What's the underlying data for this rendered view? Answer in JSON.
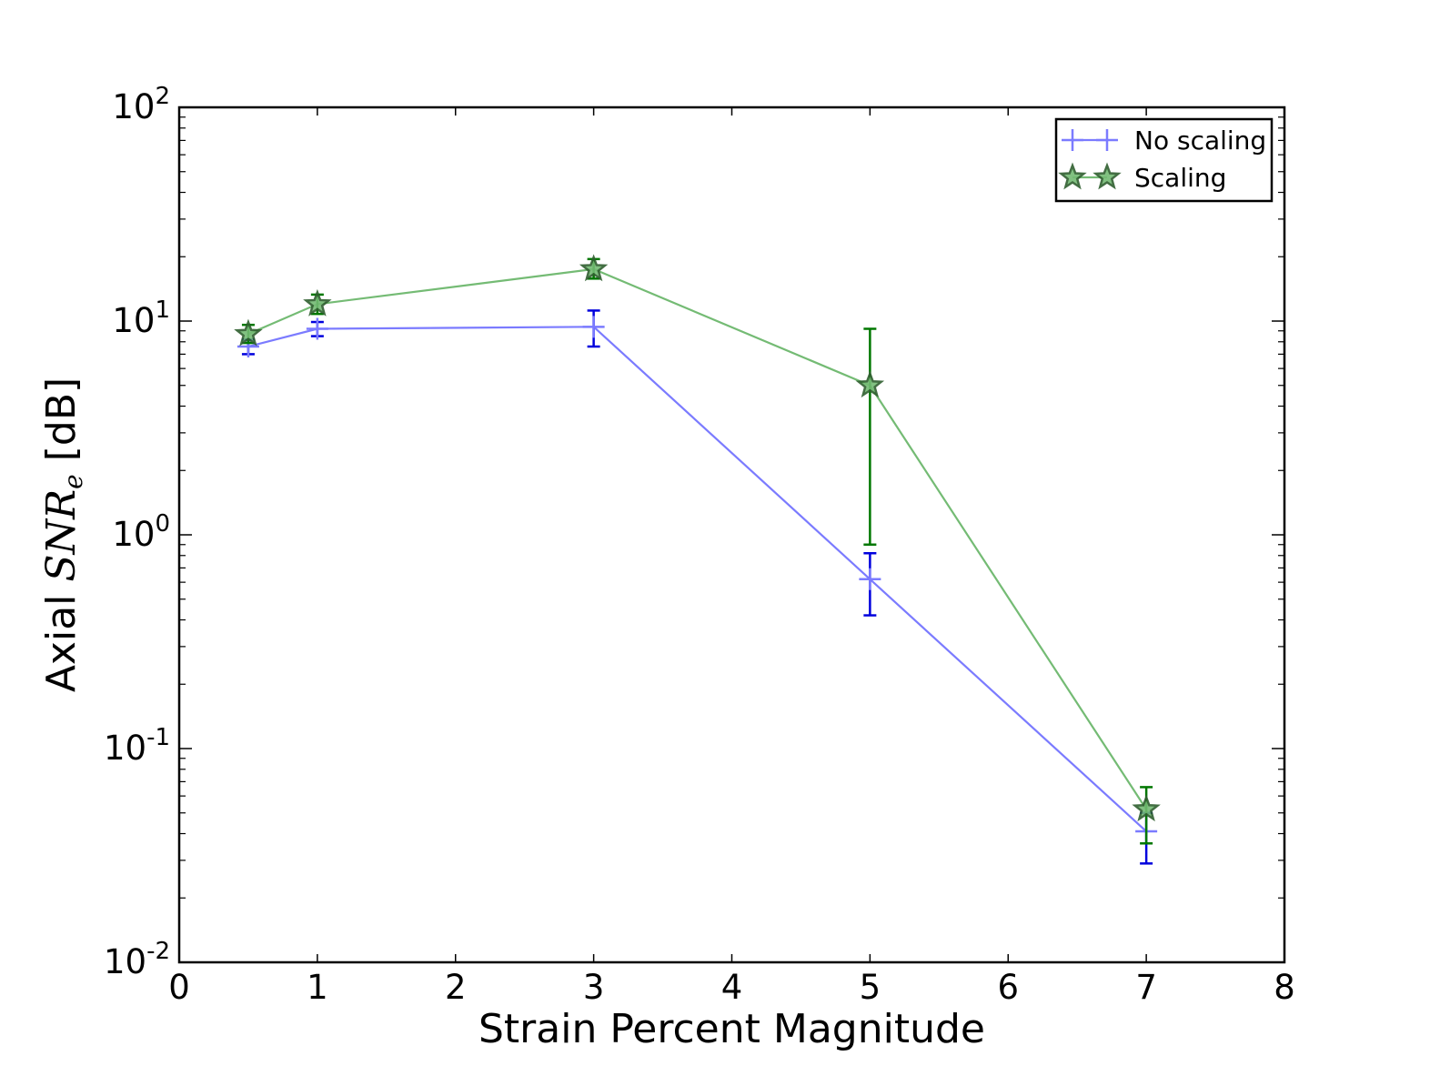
{
  "chart_data": {
    "type": "line",
    "xlabel": "Strain Percent Magnitude",
    "ylabel": {
      "prefix": "Axial ",
      "math_main": "SNR",
      "math_sub": "e",
      "suffix": " [dB]"
    },
    "xlim": [
      0,
      8
    ],
    "ylim": [
      0.01,
      100
    ],
    "yscale": "log",
    "x_ticks": [
      "0",
      "1",
      "2",
      "3",
      "4",
      "5",
      "6",
      "7",
      "8"
    ],
    "y_ticks": [
      {
        "base": "10",
        "exp": "-2",
        "value": 0.01
      },
      {
        "base": "10",
        "exp": "-1",
        "value": 0.1
      },
      {
        "base": "10",
        "exp": "0",
        "value": 1
      },
      {
        "base": "10",
        "exp": "1",
        "value": 10
      },
      {
        "base": "10",
        "exp": "2",
        "value": 100
      }
    ],
    "grid": false,
    "legend_position": "top-right",
    "series": [
      {
        "name": "No scaling",
        "marker": "plus",
        "color": "#7b7bff",
        "error_color": "#0000dd",
        "x": [
          0.5,
          1,
          3,
          5,
          7
        ],
        "y": [
          7.6,
          9.2,
          9.4,
          0.62,
          0.041
        ],
        "y_low": [
          7.0,
          8.5,
          7.6,
          0.42,
          0.029
        ],
        "y_high": [
          8.2,
          9.9,
          11.2,
          0.82,
          0.05
        ]
      },
      {
        "name": "Scaling",
        "marker": "star",
        "color": "#74bb74",
        "error_color": "#007700",
        "x": [
          0.5,
          1,
          3,
          5,
          7
        ],
        "y": [
          8.7,
          12.0,
          17.5,
          5.0,
          0.052
        ],
        "y_low": [
          7.9,
          10.8,
          15.8,
          0.9,
          0.036
        ],
        "y_high": [
          9.6,
          13.3,
          19.5,
          9.2,
          0.066
        ]
      }
    ]
  }
}
